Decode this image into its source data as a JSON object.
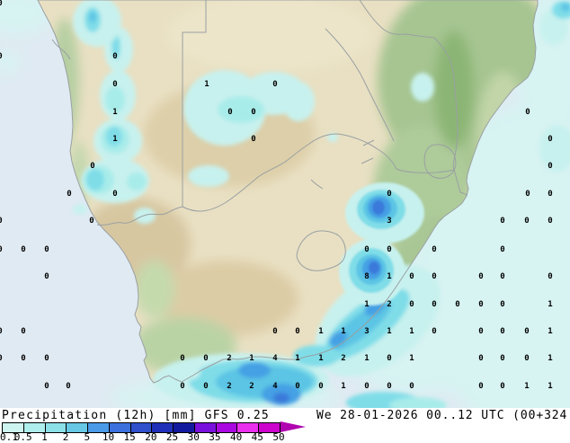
{
  "map": {
    "region": "Southern Africa",
    "units": "mm",
    "value_color": "#000000",
    "border_color": "#9aa0a2",
    "ocean_color": "#e0eaf2",
    "land_color": "#e9e0c3"
  },
  "legend": {
    "title": "Precipitation (12h) [mm] GFS 0.25",
    "ticks": [
      "0.1",
      "0.5",
      "1",
      "2",
      "5",
      "10",
      "15",
      "20",
      "25",
      "30",
      "35",
      "40",
      "45",
      "50"
    ],
    "segment_colors": [
      "#cdf4f0",
      "#aeeeec",
      "#8ce0e8",
      "#66c8e4",
      "#4a9ae8",
      "#3c70dc",
      "#3050cc",
      "#2030b8",
      "#141a9e",
      "#7a10dc",
      "#aa08e0",
      "#ea30ee",
      "#cc04cc"
    ],
    "arrow_color": "#b004b0"
  },
  "footer": {
    "run_datetime": "We 28-01-2026 00..12 UTC (00+324"
  },
  "chart_data": {
    "type": "map-grid",
    "title": "Precipitation (12h) [mm] GFS 0.25",
    "model": "GFS 0.25",
    "valid": "We 28-01-2026 00..12 UTC (00+324",
    "units": "mm",
    "scale_ticks": [
      0.1,
      0.5,
      1,
      2,
      5,
      10,
      15,
      20,
      25,
      30,
      35,
      40,
      45,
      50
    ],
    "precip_palette": {
      "trace": "#d7f3f2",
      "p0_1": "#c7f1ee",
      "p0_5": "#a8ecea",
      "p1": "#7fdde8",
      "p2": "#5cc4e4",
      "p5": "#45a0e4",
      "p10": "#3a79da"
    },
    "grid_values": [
      [
        0,
        3,
        "0"
      ],
      [
        0,
        62,
        "0"
      ],
      [
        128,
        62,
        "0"
      ],
      [
        128,
        93,
        "0"
      ],
      [
        230,
        93,
        "1"
      ],
      [
        306,
        93,
        "0"
      ],
      [
        128,
        124,
        "1"
      ],
      [
        256,
        124,
        "0"
      ],
      [
        282,
        124,
        "0"
      ],
      [
        587,
        124,
        "0"
      ],
      [
        128,
        154,
        "1"
      ],
      [
        282,
        154,
        "0"
      ],
      [
        612,
        154,
        "0"
      ],
      [
        103,
        184,
        "0"
      ],
      [
        612,
        184,
        "0"
      ],
      [
        77,
        215,
        "0"
      ],
      [
        128,
        215,
        "0"
      ],
      [
        433,
        215,
        "0"
      ],
      [
        587,
        215,
        "0"
      ],
      [
        612,
        215,
        "0"
      ],
      [
        0,
        245,
        "0"
      ],
      [
        102,
        245,
        "0"
      ],
      [
        433,
        245,
        "3"
      ],
      [
        559,
        245,
        "0"
      ],
      [
        586,
        245,
        "0"
      ],
      [
        612,
        245,
        "0"
      ],
      [
        0,
        277,
        "0"
      ],
      [
        26,
        277,
        "0"
      ],
      [
        52,
        277,
        "0"
      ],
      [
        408,
        277,
        "0"
      ],
      [
        433,
        277,
        "0"
      ],
      [
        483,
        277,
        "0"
      ],
      [
        559,
        277,
        "0"
      ],
      [
        52,
        307,
        "0"
      ],
      [
        408,
        307,
        "8"
      ],
      [
        433,
        307,
        "1"
      ],
      [
        458,
        307,
        "0"
      ],
      [
        483,
        307,
        "0"
      ],
      [
        535,
        307,
        "0"
      ],
      [
        559,
        307,
        "0"
      ],
      [
        612,
        307,
        "0"
      ],
      [
        408,
        338,
        "1"
      ],
      [
        433,
        338,
        "2"
      ],
      [
        458,
        338,
        "0"
      ],
      [
        483,
        338,
        "0"
      ],
      [
        509,
        338,
        "0"
      ],
      [
        535,
        338,
        "0"
      ],
      [
        559,
        338,
        "0"
      ],
      [
        612,
        338,
        "1"
      ],
      [
        0,
        368,
        "0"
      ],
      [
        26,
        368,
        "0"
      ],
      [
        306,
        368,
        "0"
      ],
      [
        331,
        368,
        "0"
      ],
      [
        357,
        368,
        "1"
      ],
      [
        382,
        368,
        "1"
      ],
      [
        408,
        368,
        "3"
      ],
      [
        433,
        368,
        "1"
      ],
      [
        458,
        368,
        "1"
      ],
      [
        483,
        368,
        "0"
      ],
      [
        535,
        368,
        "0"
      ],
      [
        559,
        368,
        "0"
      ],
      [
        586,
        368,
        "0"
      ],
      [
        612,
        368,
        "1"
      ],
      [
        0,
        398,
        "0"
      ],
      [
        26,
        398,
        "0"
      ],
      [
        52,
        398,
        "0"
      ],
      [
        203,
        398,
        "0"
      ],
      [
        229,
        398,
        "0"
      ],
      [
        255,
        398,
        "2"
      ],
      [
        280,
        398,
        "1"
      ],
      [
        306,
        398,
        "4"
      ],
      [
        331,
        398,
        "1"
      ],
      [
        357,
        398,
        "1"
      ],
      [
        382,
        398,
        "2"
      ],
      [
        408,
        398,
        "1"
      ],
      [
        433,
        398,
        "0"
      ],
      [
        458,
        398,
        "1"
      ],
      [
        535,
        398,
        "0"
      ],
      [
        559,
        398,
        "0"
      ],
      [
        586,
        398,
        "0"
      ],
      [
        612,
        398,
        "1"
      ],
      [
        52,
        429,
        "0"
      ],
      [
        76,
        429,
        "0"
      ],
      [
        203,
        429,
        "0"
      ],
      [
        229,
        429,
        "0"
      ],
      [
        255,
        429,
        "2"
      ],
      [
        280,
        429,
        "2"
      ],
      [
        306,
        429,
        "4"
      ],
      [
        331,
        429,
        "0"
      ],
      [
        357,
        429,
        "0"
      ],
      [
        382,
        429,
        "1"
      ],
      [
        408,
        429,
        "0"
      ],
      [
        433,
        429,
        "0"
      ],
      [
        458,
        429,
        "0"
      ],
      [
        535,
        429,
        "0"
      ],
      [
        559,
        429,
        "0"
      ],
      [
        586,
        429,
        "1"
      ],
      [
        612,
        429,
        "1"
      ]
    ]
  }
}
